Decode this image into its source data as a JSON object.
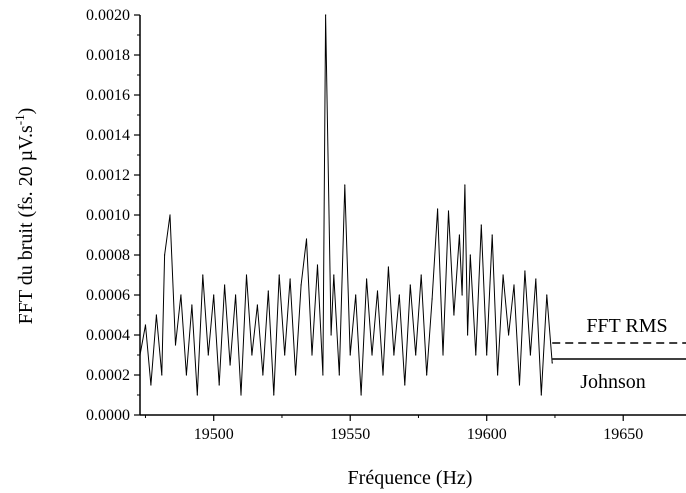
{
  "chart_data": {
    "type": "line",
    "title": "",
    "xlabel": "Fréquence (Hz)",
    "ylabel_main": "FFT du bruit (fs. 20 µV.s",
    "ylabel_sup": "-1",
    "ylabel_close": ")",
    "xlim": [
      19473,
      19673
    ],
    "ylim": [
      0,
      0.002
    ],
    "x_ticks": [
      19500,
      19550,
      19600,
      19650
    ],
    "x_tick_labels": [
      "19500",
      "19550",
      "19600",
      "19650"
    ],
    "y_ticks": [
      0,
      0.0002,
      0.0004,
      0.0006,
      0.0008,
      0.001,
      0.0012,
      0.0014,
      0.0016,
      0.0018,
      0.002
    ],
    "y_tick_labels": [
      "0.0000",
      "0.0002",
      "0.0004",
      "0.0006",
      "0.0008",
      "0.0010",
      "0.0012",
      "0.0014",
      "0.0016",
      "0.0018",
      "0.0020"
    ],
    "grid": false,
    "legend": "none",
    "series": [
      {
        "style": "solid",
        "color": "#000000",
        "x": [
          19473,
          19475,
          19477,
          19479,
          19481,
          19482,
          19484,
          19486,
          19488,
          19490,
          19492,
          19494,
          19496,
          19498,
          19500,
          19502,
          19504,
          19506,
          19508,
          19510,
          19512,
          19514,
          19516,
          19518,
          19520,
          19522,
          19524,
          19526,
          19528,
          19530,
          19532,
          19534,
          19536,
          19538,
          19540,
          19541,
          19543,
          19544,
          19546,
          19548,
          19550,
          19552,
          19554,
          19556,
          19558,
          19560,
          19562,
          19564,
          19566,
          19568,
          19570,
          19572,
          19574,
          19576,
          19578,
          19580,
          19582,
          19584,
          19586,
          19588,
          19590,
          19591,
          19592,
          19593,
          19594,
          19596,
          19598,
          19600,
          19602,
          19604,
          19606,
          19608,
          19610,
          19612,
          19614,
          19616,
          19618,
          19620,
          19622,
          19624
        ],
        "y": [
          0.0003,
          0.00045,
          0.00015,
          0.0005,
          0.0002,
          0.0008,
          0.001,
          0.00035,
          0.0006,
          0.0002,
          0.00055,
          0.0001,
          0.0007,
          0.0003,
          0.0006,
          0.00015,
          0.00065,
          0.00025,
          0.0006,
          0.0001,
          0.0007,
          0.0003,
          0.00055,
          0.0002,
          0.00062,
          0.0001,
          0.0007,
          0.0003,
          0.00068,
          0.0002,
          0.00065,
          0.00088,
          0.0003,
          0.00075,
          0.0002,
          0.002,
          0.0004,
          0.0007,
          0.0002,
          0.00115,
          0.0003,
          0.0006,
          0.0001,
          0.00068,
          0.0003,
          0.00062,
          0.0002,
          0.00074,
          0.0003,
          0.0006,
          0.00015,
          0.00065,
          0.0003,
          0.0007,
          0.0002,
          0.00058,
          0.00103,
          0.0003,
          0.00102,
          0.0005,
          0.0009,
          0.0006,
          0.00115,
          0.0004,
          0.0008,
          0.0003,
          0.00095,
          0.0003,
          0.0009,
          0.0002,
          0.0007,
          0.0004,
          0.00065,
          0.00015,
          0.00072,
          0.0003,
          0.00068,
          0.0001,
          0.0006,
          0.00026
        ]
      }
    ],
    "reference_lines": [
      {
        "label": "FFT RMS",
        "y": 0.00036,
        "style": "dashed",
        "x_start": 19624,
        "x_end": 19673
      },
      {
        "label": "Johnson",
        "y": 0.00028,
        "style": "solid",
        "x_start": 19624,
        "x_end": 19673
      }
    ]
  }
}
